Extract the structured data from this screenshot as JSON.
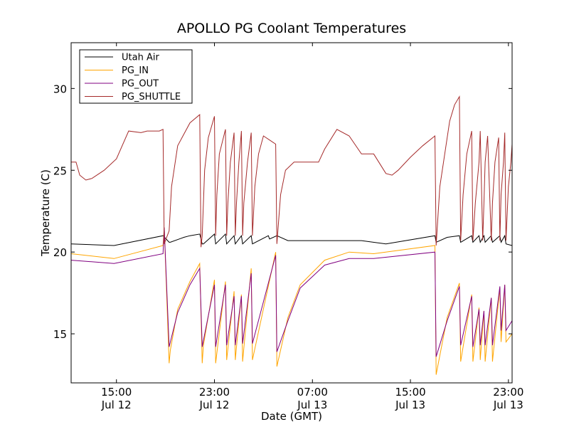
{
  "chart_data": {
    "type": "line",
    "title": "APOLLO PG Coolant Temperatures",
    "xlabel": "Date (GMT)",
    "ylabel": "Temperature (C)",
    "x_unit": "hours since Jul 12 00:00 GMT",
    "xlim": [
      11.3,
      47.3
    ],
    "ylim": [
      12,
      32.8
    ],
    "yticks": [
      15,
      20,
      25,
      30
    ],
    "xticks": [
      {
        "value": 15,
        "time": "15:00",
        "date": "Jul 12"
      },
      {
        "value": 23,
        "time": "23:00",
        "date": "Jul 12"
      },
      {
        "value": 31,
        "time": "07:00",
        "date": "Jul 13"
      },
      {
        "value": 39,
        "time": "15:00",
        "date": "Jul 13"
      },
      {
        "value": 47,
        "time": "23:00",
        "date": "Jul 13"
      }
    ],
    "legend_position": "top-left",
    "series": [
      {
        "name": "Utah Air",
        "color": "#000000",
        "x": [
          11.3,
          14.8,
          18.8,
          19.3,
          19.4,
          20.5,
          21.0,
          21.8,
          22.0,
          22.1,
          23.0,
          23.1,
          23.9,
          24.0,
          24.6,
          24.7,
          25.2,
          25.3,
          26.0,
          26.1,
          27.4,
          27.5,
          28.1,
          29.0,
          35.0,
          37.0,
          41.0,
          41.1,
          42.0,
          43.0,
          43.1,
          44.0,
          44.1,
          44.6,
          44.7,
          45.0,
          45.1,
          45.6,
          45.7,
          46.3,
          46.4,
          46.7,
          46.8,
          47.3
        ],
        "y": [
          20.5,
          20.4,
          21.0,
          20.6,
          20.6,
          20.9,
          21.0,
          21.1,
          20.5,
          20.5,
          21.1,
          20.5,
          21.1,
          20.5,
          21.0,
          20.5,
          21.0,
          20.5,
          21.0,
          20.5,
          21.0,
          20.8,
          21.0,
          20.7,
          20.7,
          20.5,
          21.0,
          20.6,
          20.9,
          21.0,
          20.6,
          21.0,
          20.6,
          21.0,
          20.6,
          21.0,
          20.6,
          21.0,
          20.6,
          21.0,
          20.6,
          21.0,
          20.5,
          20.4
        ]
      },
      {
        "name": "PG_IN",
        "color": "#FFA500",
        "x": [
          11.3,
          14.8,
          18.8,
          18.9,
          19.3,
          19.4,
          20.0,
          21.0,
          21.8,
          22.0,
          22.1,
          23.0,
          23.1,
          23.9,
          24.0,
          24.6,
          24.7,
          25.2,
          25.3,
          26.0,
          26.1,
          28.0,
          28.1,
          29.0,
          30.0,
          32.0,
          34.0,
          36.0,
          41.0,
          41.1,
          42.0,
          43.0,
          43.1,
          44.0,
          44.1,
          44.6,
          44.7,
          45.0,
          45.1,
          45.6,
          45.7,
          46.3,
          46.4,
          46.7,
          46.8,
          47.3
        ],
        "y": [
          19.9,
          19.6,
          20.4,
          21.5,
          13.2,
          14.0,
          16.5,
          18.2,
          19.3,
          13.2,
          14.3,
          18.3,
          13.2,
          18.2,
          13.4,
          17.6,
          13.4,
          17.4,
          13.3,
          19.0,
          13.4,
          20.0,
          13.0,
          16.0,
          18.0,
          19.5,
          20.0,
          19.9,
          20.4,
          12.5,
          16.0,
          18.1,
          13.3,
          17.4,
          13.3,
          16.6,
          13.4,
          16.4,
          13.3,
          17.2,
          13.3,
          17.8,
          14.5,
          18.0,
          14.5,
          15.0
        ]
      },
      {
        "name": "PG_OUT",
        "color": "#800080",
        "x": [
          11.3,
          14.8,
          18.8,
          18.9,
          19.3,
          19.4,
          20.0,
          21.0,
          21.8,
          22.0,
          22.1,
          23.0,
          23.1,
          23.9,
          24.0,
          24.6,
          24.7,
          25.2,
          25.3,
          26.0,
          26.1,
          28.0,
          28.1,
          29.0,
          30.0,
          32.0,
          34.0,
          36.0,
          41.0,
          41.1,
          42.0,
          43.0,
          43.1,
          44.0,
          44.1,
          44.6,
          44.7,
          45.0,
          45.1,
          45.6,
          45.7,
          46.3,
          46.4,
          46.7,
          46.8,
          47.3
        ],
        "y": [
          19.5,
          19.3,
          19.9,
          21.5,
          14.2,
          14.5,
          16.3,
          18.0,
          19.0,
          14.2,
          14.6,
          18.0,
          14.2,
          18.0,
          14.3,
          17.3,
          14.3,
          17.3,
          14.4,
          18.7,
          14.4,
          19.8,
          13.9,
          15.8,
          17.8,
          19.2,
          19.6,
          19.6,
          20.0,
          13.6,
          15.8,
          17.9,
          14.3,
          17.3,
          14.2,
          16.5,
          14.3,
          16.4,
          14.3,
          17.2,
          14.3,
          17.9,
          15.2,
          18.0,
          15.2,
          15.8
        ]
      },
      {
        "name": "PG_SHUTTLE",
        "color": "#A52A2A",
        "x": [
          11.3,
          11.7,
          12.0,
          12.5,
          13.0,
          14.0,
          15.0,
          16.0,
          17.0,
          17.5,
          18.5,
          18.8,
          18.9,
          19.3,
          19.5,
          20.0,
          21.0,
          21.8,
          21.9,
          22.0,
          22.2,
          22.5,
          23.0,
          23.1,
          23.2,
          23.4,
          23.9,
          24.0,
          24.1,
          24.3,
          24.6,
          24.7,
          24.8,
          25.0,
          25.2,
          25.3,
          25.4,
          25.7,
          26.0,
          26.1,
          26.3,
          26.6,
          27.0,
          28.0,
          28.1,
          28.4,
          28.8,
          29.5,
          30.5,
          31.5,
          32.0,
          33.0,
          34.0,
          35.0,
          36.0,
          37.0,
          37.5,
          38.0,
          39.0,
          40.0,
          41.0,
          41.1,
          41.4,
          41.8,
          42.2,
          42.6,
          43.0,
          43.1,
          43.3,
          43.6,
          44.0,
          44.1,
          44.3,
          44.6,
          44.7,
          44.9,
          45.0,
          45.1,
          45.3,
          45.6,
          45.7,
          45.9,
          46.2,
          46.3,
          46.4,
          46.6,
          46.7,
          46.8,
          47.0,
          47.2,
          47.3
        ],
        "y": [
          25.5,
          25.5,
          24.7,
          24.4,
          24.5,
          25.0,
          25.7,
          27.4,
          27.3,
          27.4,
          27.4,
          27.5,
          20.5,
          21.3,
          24.0,
          26.5,
          27.9,
          28.4,
          20.3,
          21.0,
          25.0,
          27.0,
          28.3,
          21.0,
          23.5,
          26.0,
          27.5,
          21.0,
          23.0,
          25.5,
          27.3,
          21.0,
          23.0,
          25.5,
          27.4,
          21.0,
          23.0,
          25.5,
          27.3,
          21.0,
          24.0,
          26.0,
          27.1,
          26.6,
          20.5,
          23.5,
          25.0,
          25.5,
          25.5,
          25.5,
          26.3,
          27.5,
          27.1,
          26.0,
          26.0,
          24.8,
          24.7,
          25.0,
          25.8,
          26.5,
          27.1,
          20.4,
          24.0,
          26.0,
          28.0,
          29.0,
          29.5,
          20.7,
          23.5,
          26.0,
          27.4,
          20.7,
          23.0,
          25.5,
          27.4,
          20.7,
          23.0,
          25.5,
          27.1,
          20.7,
          23.0,
          25.5,
          27.0,
          20.7,
          23.5,
          25.5,
          27.3,
          20.7,
          24.0,
          25.5,
          26.6
        ]
      }
    ]
  }
}
